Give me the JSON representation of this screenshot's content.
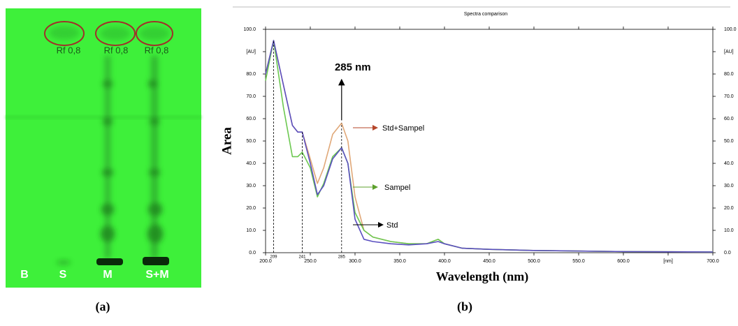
{
  "plate": {
    "rf_labels": [
      "Rf 0,8",
      "Rf 0,8",
      "Rf 0,8"
    ],
    "lanes": [
      "B",
      "S",
      "M",
      "S+M"
    ],
    "caption": "(a)"
  },
  "chart_data": {
    "type": "line",
    "title": "Spectra comparison",
    "x_label": "Wavelength (nm)",
    "y_label": "Area",
    "caption": "(b)",
    "annotation": "285 nm",
    "x": [
      200,
      209,
      220,
      230,
      236,
      241,
      250,
      258,
      265,
      275,
      285,
      292,
      300,
      310,
      320,
      340,
      360,
      380,
      393,
      400,
      420,
      450,
      500,
      600,
      700
    ],
    "series": [
      {
        "name": "Std+Sampel",
        "color": "#e0a878",
        "values": [
          80,
          95,
          75,
          57,
          54,
          54,
          42,
          31,
          38,
          53,
          58,
          50,
          25,
          10,
          7,
          5,
          4,
          4,
          6,
          4,
          2,
          1.5,
          1,
          0.5,
          0.3
        ]
      },
      {
        "name": "Sampel",
        "color": "#6cc850",
        "values": [
          77,
          95,
          65,
          43,
          43,
          45,
          38,
          25,
          31,
          43,
          47,
          40,
          18,
          10,
          7,
          5,
          4,
          4,
          6,
          4,
          2,
          1.5,
          1,
          0.5,
          0.3
        ]
      },
      {
        "name": "Std",
        "color": "#5a4fc0",
        "values": [
          80,
          95,
          75,
          57,
          54,
          54,
          40,
          26,
          30,
          42,
          47,
          40,
          15,
          6,
          5,
          4,
          3.5,
          4,
          5,
          4,
          2,
          1.5,
          1,
          0.5,
          0.3
        ]
      }
    ],
    "markers": [
      209,
      241,
      285
    ],
    "xlim": [
      200,
      700
    ],
    "ylim": [
      0,
      100
    ],
    "xticks": [
      {
        "value": 200,
        "label": "200.0"
      },
      {
        "value": 250,
        "label": "250.0"
      },
      {
        "value": 300,
        "label": "300.0"
      },
      {
        "value": 350,
        "label": "350.0"
      },
      {
        "value": 400,
        "label": "400.0"
      },
      {
        "value": 450,
        "label": "450.0"
      },
      {
        "value": 500,
        "label": "500.0"
      },
      {
        "value": 550,
        "label": "550.0"
      },
      {
        "value": 600,
        "label": "600.0"
      },
      {
        "value": 650,
        "label": "[nm]"
      },
      {
        "value": 700,
        "label": "700.0"
      }
    ],
    "yticks": [
      {
        "value": 0,
        "label": "0.0"
      },
      {
        "value": 10,
        "label": "10.0"
      },
      {
        "value": 20,
        "label": "20.0"
      },
      {
        "value": 30,
        "label": "30.0"
      },
      {
        "value": 40,
        "label": "40.0"
      },
      {
        "value": 50,
        "label": "50.0"
      },
      {
        "value": 60,
        "label": "60.0"
      },
      {
        "value": 70,
        "label": "70.0"
      },
      {
        "value": 80,
        "label": "80.0"
      },
      {
        "value": 90,
        "label": "[AU]"
      },
      {
        "value": 100,
        "label": "100.0"
      }
    ],
    "grid": false
  }
}
